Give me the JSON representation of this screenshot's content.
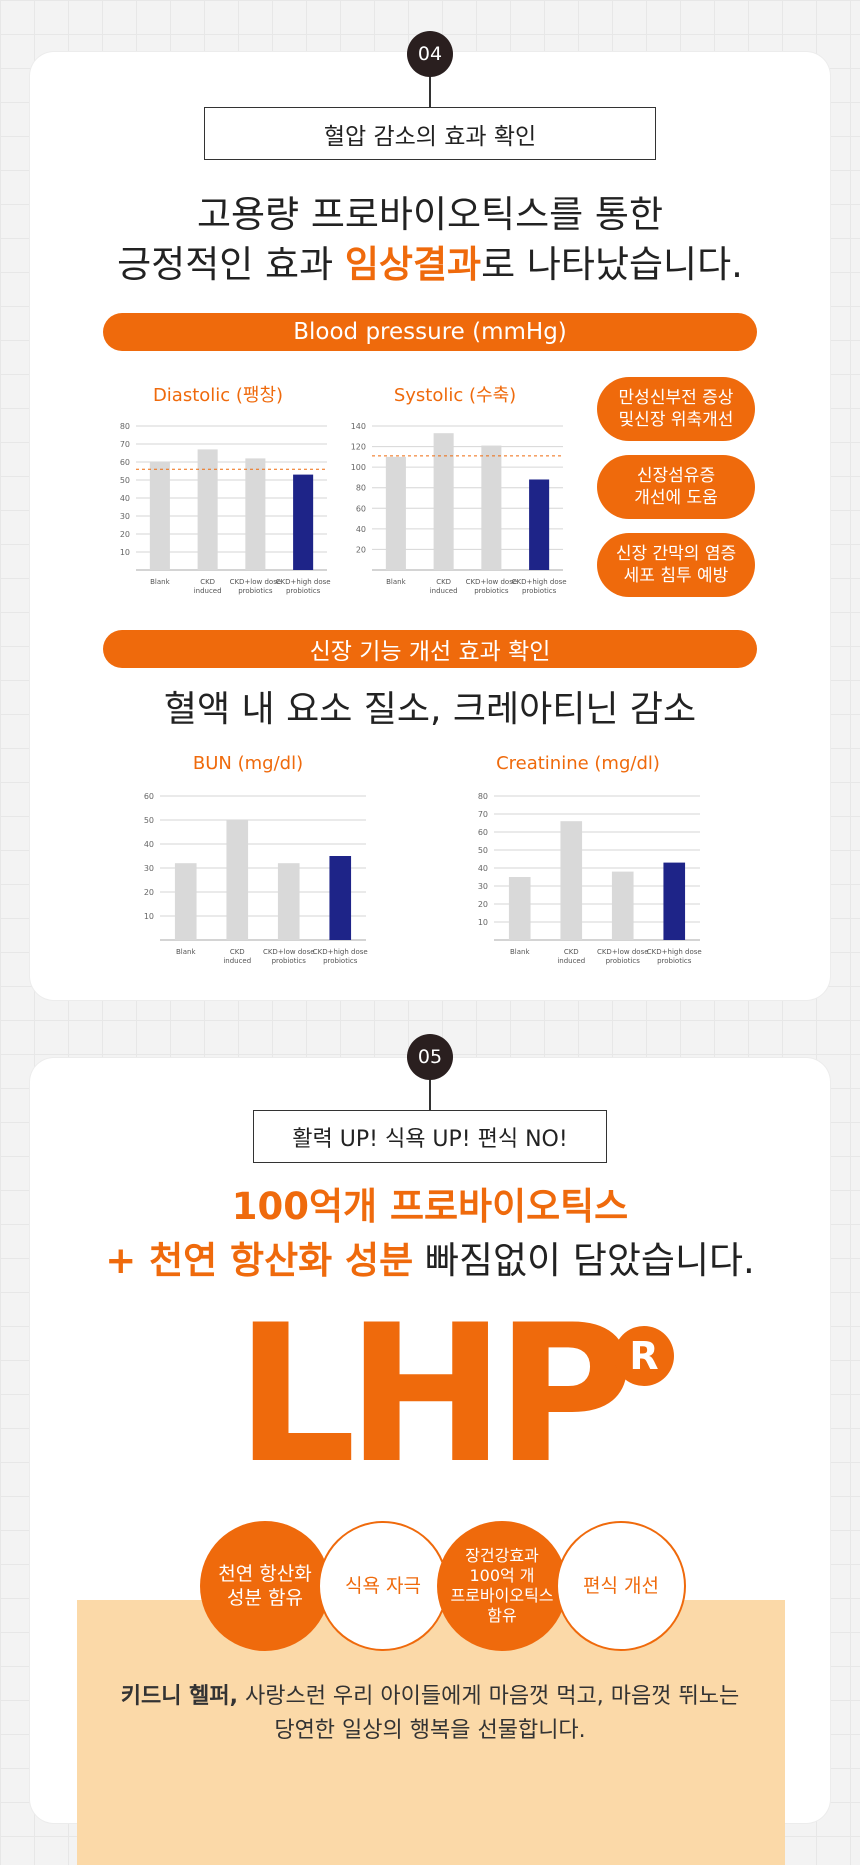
{
  "section1": {
    "step": "04",
    "boxed_title": "혈압 감소의 효과 확인",
    "headline_line1": "고용량 프로바이오틱스를 통한",
    "headline_line2_pre": "긍정적인 효과 ",
    "headline_line2_accent": "임상결과",
    "headline_line2_post": "로 나타났습니다.",
    "pill_bp": "Blood pressure (mmHg)",
    "badges": [
      "만성신부전 증상\n및신장 위축개선",
      "신장섬유증\n개선에 도움",
      "신장 간막의 염증\n세포 침투 예방"
    ],
    "pill_kidney": "신장 기능 개선 효과 확인",
    "subhead": "혈액 내 요소 질소, 크레아티닌 감소"
  },
  "section2": {
    "step": "05",
    "boxed_title": "활력 UP! 식욕 UP! 편식 NO!",
    "headline_line1": "100억개 프로바이오틱스",
    "headline_line2_accent": "+ 천연 항산화 성분",
    "headline_line2_post": " 빠짐없이 담았습니다.",
    "logo": "LHP",
    "logo_mark": "R",
    "circles": [
      "천연 항산화\n성분 함유",
      "식욕 자극",
      "장건강효과\n100억 개\n프로바이오틱스\n함유",
      "편식 개선"
    ],
    "footer_bold": "키드니 헬퍼,",
    "footer_line1": " 사랑스런 우리 아이들에게 마음껏 먹고, 마음껏 뛰노는",
    "footer_line2": "당연한 일상의 행복을 선물합니다."
  },
  "colors": {
    "accent": "#ef6a0c",
    "bar_gray": "#d9d9d9",
    "bar_navy": "#1e2488",
    "peach": "#fbd9a8"
  },
  "chart_data": [
    {
      "type": "bar",
      "title": "Diastolic (팽창)",
      "categories": [
        "Blank",
        "CKD\ninduced",
        "CKD+low dose\nprobiotics",
        "CKD+high dose\nprobiotics"
      ],
      "values": [
        60,
        67,
        62,
        53
      ],
      "ylim": [
        0,
        80
      ],
      "yticks": [
        10,
        20,
        30,
        40,
        50,
        60,
        70,
        80
      ],
      "reference_line": 56
    },
    {
      "type": "bar",
      "title": "Systolic (수축)",
      "categories": [
        "Blank",
        "CKD\ninduced",
        "CKD+low dose\nprobiotics",
        "CKD+high dose\nprobiotics"
      ],
      "values": [
        110,
        133,
        121,
        88
      ],
      "ylim": [
        0,
        140
      ],
      "yticks": [
        20,
        40,
        60,
        80,
        100,
        120,
        140
      ],
      "reference_line": 111
    },
    {
      "type": "bar",
      "title": "BUN (mg/dl)",
      "categories": [
        "Blank",
        "CKD\ninduced",
        "CKD+low dose\nprobiotics",
        "CKD+high dose\nprobiotics"
      ],
      "values": [
        32,
        50,
        32,
        35
      ],
      "ylim": [
        0,
        60
      ],
      "yticks": [
        10,
        20,
        30,
        40,
        50,
        60
      ]
    },
    {
      "type": "bar",
      "title": "Creatinine (mg/dl)",
      "categories": [
        "Blank",
        "CKD\ninduced",
        "CKD+low dose\nprobiotics",
        "CKD+high dose\nprobiotics"
      ],
      "values": [
        35,
        66,
        38,
        43
      ],
      "ylim": [
        0,
        80
      ],
      "yticks": [
        10,
        20,
        30,
        40,
        50,
        60,
        70,
        80
      ]
    }
  ]
}
